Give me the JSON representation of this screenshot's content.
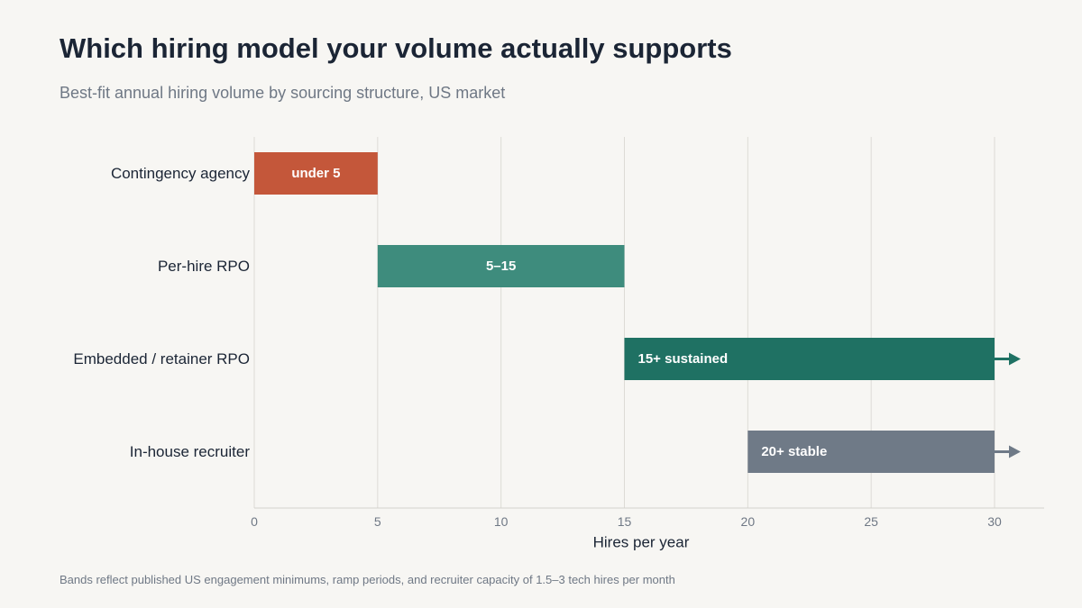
{
  "chart_data": {
    "type": "bar",
    "orientation": "horizontal-range",
    "title": "Which hiring model your volume actually supports",
    "subtitle": "Best-fit annual hiring volume by sourcing structure, US market",
    "xlabel": "Hires per year",
    "ylabel": "",
    "xlim": [
      0,
      30
    ],
    "xticks": [
      0,
      5,
      10,
      15,
      20,
      25,
      30
    ],
    "grid": true,
    "categories": [
      "Contingency agency",
      "Per-hire RPO",
      "Embedded / retainer RPO",
      "In-house recruiter"
    ],
    "bars": [
      {
        "category": "Contingency agency",
        "start": 0,
        "end": 5,
        "label": "under 5",
        "color": "#c4573a",
        "open_ended": false,
        "label_align": "center"
      },
      {
        "category": "Per-hire RPO",
        "start": 5,
        "end": 15,
        "label": "5–15",
        "color": "#3e8c7d",
        "open_ended": false,
        "label_align": "center"
      },
      {
        "category": "Embedded / retainer RPO",
        "start": 15,
        "end": 30,
        "label": "15+ sustained",
        "color": "#1f7163",
        "open_ended": true,
        "label_align": "left"
      },
      {
        "category": "In-house recruiter",
        "start": 20,
        "end": 30,
        "label": "20+ stable",
        "color": "#6f7a87",
        "open_ended": true,
        "label_align": "left"
      }
    ],
    "footnote": "Bands reflect published US engagement minimums, ramp periods, and recruiter capacity of 1.5–3 tech hires per month"
  }
}
